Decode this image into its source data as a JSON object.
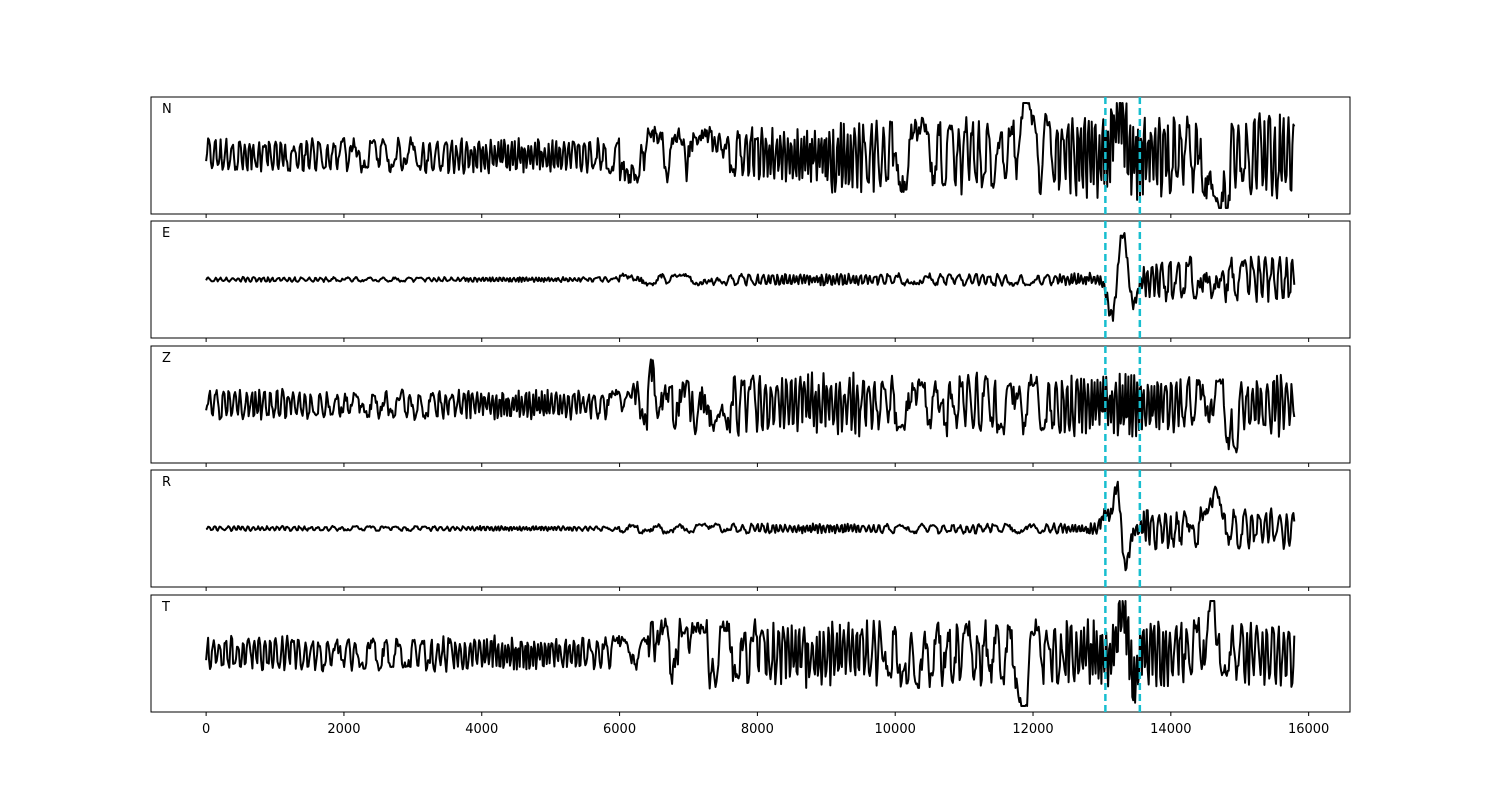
{
  "chart_data": {
    "type": "line",
    "xlim": [
      -800,
      16600
    ],
    "x_ticks": [
      0,
      2000,
      4000,
      6000,
      8000,
      10000,
      12000,
      14000,
      16000
    ],
    "x_tick_labels": [
      "0",
      "2000",
      "4000",
      "6000",
      "8000",
      "10000",
      "12000",
      "14000",
      "16000"
    ],
    "picks": [
      13050,
      13550
    ],
    "pick_color": "#17becf",
    "trace_color": "#000000",
    "x_end": 15800,
    "grid": false,
    "panels": [
      {
        "label": "N",
        "seed": 11,
        "segments": [
          {
            "x0": 0,
            "x1": 6000,
            "amp": 0.35,
            "period": 95
          },
          {
            "x0": 6000,
            "x1": 9000,
            "amp": 0.55,
            "period": 120
          },
          {
            "x0": 9000,
            "x1": 12000,
            "amp": 0.75,
            "period": 150
          },
          {
            "x0": 12000,
            "x1": 15800,
            "amp": 0.85,
            "period": 170
          }
        ],
        "events": [
          {
            "x": 11900,
            "amp": 0.8,
            "width": 70
          },
          {
            "x": 13250,
            "amp": 0.9,
            "width": 90
          },
          {
            "x": 14750,
            "amp": -0.95,
            "width": 80
          }
        ]
      },
      {
        "label": "E",
        "seed": 23,
        "segments": [
          {
            "x0": 0,
            "x1": 6000,
            "amp": 0.05,
            "period": 90
          },
          {
            "x0": 6000,
            "x1": 12800,
            "amp": 0.12,
            "period": 140
          },
          {
            "x0": 12800,
            "x1": 13600,
            "amp": 0.15,
            "period": 180
          },
          {
            "x0": 13600,
            "x1": 15800,
            "amp": 0.45,
            "period": 220
          }
        ],
        "events": [
          {
            "x": 13150,
            "amp": -0.75,
            "width": 90
          },
          {
            "x": 13300,
            "amp": 0.95,
            "width": 90
          },
          {
            "x": 13450,
            "amp": -0.5,
            "width": 80
          }
        ]
      },
      {
        "label": "Z",
        "seed": 37,
        "segments": [
          {
            "x0": 0,
            "x1": 6200,
            "amp": 0.3,
            "period": 95
          },
          {
            "x0": 6200,
            "x1": 15800,
            "amp": 0.62,
            "period": 165
          }
        ],
        "events": [
          {
            "x": 6350,
            "amp": -0.75,
            "width": 70
          },
          {
            "x": 6500,
            "amp": 0.75,
            "width": 70
          },
          {
            "x": 6550,
            "amp": -0.95,
            "width": 60
          },
          {
            "x": 14900,
            "amp": -0.7,
            "width": 80
          }
        ]
      },
      {
        "label": "R",
        "seed": 53,
        "segments": [
          {
            "x0": 0,
            "x1": 6000,
            "amp": 0.05,
            "period": 90
          },
          {
            "x0": 6000,
            "x1": 12800,
            "amp": 0.1,
            "period": 140
          },
          {
            "x0": 12800,
            "x1": 13600,
            "amp": 0.15,
            "period": 180
          },
          {
            "x0": 13600,
            "x1": 15800,
            "amp": 0.42,
            "period": 220
          }
        ],
        "events": [
          {
            "x": 13050,
            "amp": 0.3,
            "width": 70
          },
          {
            "x": 13230,
            "amp": 0.95,
            "width": 80
          },
          {
            "x": 13330,
            "amp": -0.9,
            "width": 80
          },
          {
            "x": 14650,
            "amp": 0.5,
            "width": 90
          }
        ]
      },
      {
        "label": "T",
        "seed": 71,
        "segments": [
          {
            "x0": 0,
            "x1": 6400,
            "amp": 0.35,
            "period": 95
          },
          {
            "x0": 6400,
            "x1": 15800,
            "amp": 0.68,
            "period": 165
          }
        ],
        "events": [
          {
            "x": 11870,
            "amp": -0.85,
            "width": 70
          },
          {
            "x": 13300,
            "amp": 0.95,
            "width": 90
          },
          {
            "x": 13450,
            "amp": -0.6,
            "width": 80
          },
          {
            "x": 14600,
            "amp": 0.75,
            "width": 80
          }
        ]
      }
    ]
  }
}
